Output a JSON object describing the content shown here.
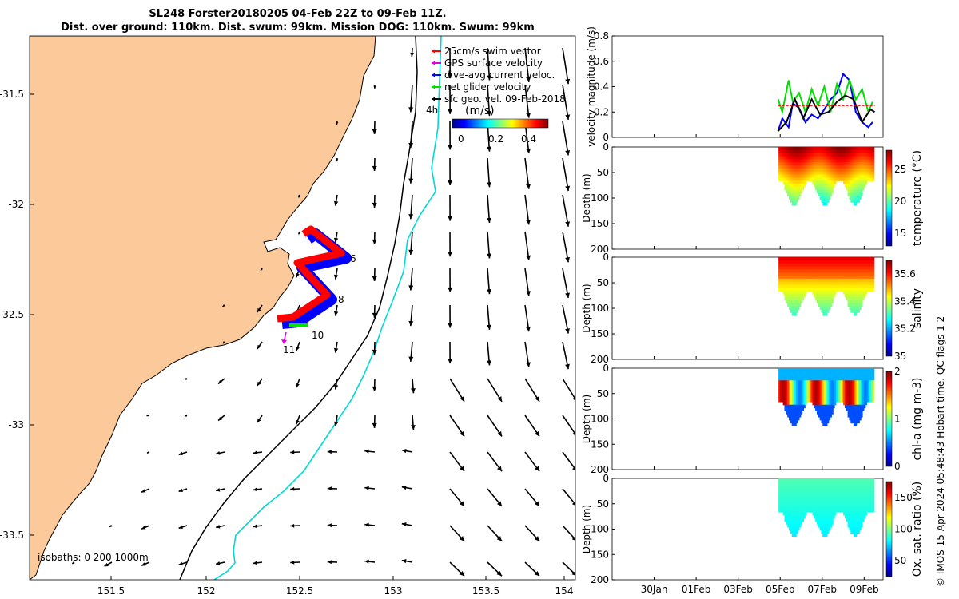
{
  "title_line1": "SL248 Forster20180205 04-Feb 22Z to 09-Feb 11Z.",
  "title_line2": "Dist. over ground: 110km. Dist. swum: 99km. Mission DOG: 110km. Swum: 99km",
  "credit": "© IMOS 15-Apr-2024 05:48:43 Hobart time. QC flags 1  2",
  "colors": {
    "land": "#fcc99b",
    "coast": "#000000",
    "isobath_200": "#000000",
    "isobath_1000": "#00d8d8",
    "swim": "#ff0000",
    "gps": "#e000e0",
    "dive_avg": "#0000ff",
    "net": "#00e000",
    "sfc_geo": "#000000"
  },
  "map": {
    "legend": [
      {
        "label": "25cm/s swim vector",
        "color": "#ff0000"
      },
      {
        "label": "GPS surface velocity",
        "color": "#e000e0"
      },
      {
        "label": "dive-avg current veloc.",
        "color": "#0000ff"
      },
      {
        "label": "net glider velocity",
        "color": "#00e000"
      },
      {
        "label": "sfc geo. vel. 09-Feb-2018",
        "color": "#000000"
      }
    ],
    "colorbar_unit": "(m/s)",
    "colorbar_ticks": [
      "0",
      "0.2",
      "0.4"
    ],
    "time_scale_label": "4h",
    "isobaths_label": "isobaths: 0   200  1000m",
    "lon_ticks": [
      "151.5",
      "152",
      "152.5",
      "153",
      "153.5",
      "154"
    ],
    "lat_ticks": [
      "-31.5",
      "-32",
      "-32.5",
      "-33",
      "-33.5"
    ],
    "track_labels": [
      "6",
      "8",
      "10",
      "11"
    ]
  },
  "chart_data": [
    {
      "type": "line",
      "title": "",
      "ylabel": "velocity magnitude (m/s)",
      "ylim": [
        0,
        0.8
      ],
      "y_ticks": [
        "0",
        "0.2",
        "0.4",
        "0.6",
        "0.8"
      ],
      "x_ticks": [
        "30Jan",
        "01Feb",
        "03Feb",
        "05Feb",
        "07Feb",
        "09Feb"
      ],
      "series": [
        {
          "name": "dive-avg current veloc.",
          "color": "#0000ff",
          "x": [
            4.9,
            5.1,
            5.4,
            5.6,
            5.9,
            6.2,
            6.5,
            6.8,
            7.1,
            7.4,
            7.7,
            8.0,
            8.3,
            8.6,
            8.9,
            9.2,
            9.4
          ],
          "y": [
            0.05,
            0.15,
            0.08,
            0.27,
            0.23,
            0.12,
            0.18,
            0.15,
            0.22,
            0.3,
            0.35,
            0.5,
            0.45,
            0.2,
            0.12,
            0.08,
            0.12
          ]
        },
        {
          "name": "net glider velocity",
          "color": "#00e000",
          "x": [
            4.9,
            5.1,
            5.4,
            5.6,
            5.9,
            6.2,
            6.5,
            6.8,
            7.1,
            7.4,
            7.7,
            8.0,
            8.3,
            8.6,
            8.9,
            9.2,
            9.4
          ],
          "y": [
            0.3,
            0.2,
            0.45,
            0.28,
            0.35,
            0.2,
            0.38,
            0.25,
            0.4,
            0.2,
            0.42,
            0.3,
            0.45,
            0.3,
            0.38,
            0.2,
            0.28
          ]
        },
        {
          "name": "sfc geo. vel.",
          "color": "#000000",
          "x": [
            4.9,
            5.3,
            5.7,
            6.1,
            6.5,
            6.9,
            7.3,
            7.7,
            8.1,
            8.5,
            8.9,
            9.3,
            9.5
          ],
          "y": [
            0.05,
            0.12,
            0.3,
            0.15,
            0.3,
            0.18,
            0.2,
            0.28,
            0.33,
            0.3,
            0.12,
            0.22,
            0.2
          ]
        },
        {
          "name": "swim",
          "color": "#ff0000",
          "x": [
            4.9,
            9.5
          ],
          "y": [
            0.25,
            0.25
          ]
        }
      ]
    },
    {
      "type": "heatmap",
      "variable": "temperature (°C)",
      "ylabel": "Depth (m)",
      "ylim": [
        200,
        0
      ],
      "y_ticks": [
        "0",
        "50",
        "100",
        "150",
        "200"
      ],
      "colorbar_ticks": [
        "15",
        "20",
        "25"
      ],
      "clim": [
        13,
        28
      ],
      "x_ticks": [
        "30Jan",
        "01Feb",
        "03Feb",
        "05Feb",
        "07Feb",
        "09Feb"
      ]
    },
    {
      "type": "heatmap",
      "variable": "salinity",
      "ylabel": "Depth (m)",
      "ylim": [
        200,
        0
      ],
      "y_ticks": [
        "0",
        "50",
        "100",
        "150",
        "200"
      ],
      "colorbar_ticks": [
        "35",
        "35.2",
        "35.4",
        "35.6"
      ],
      "clim": [
        35,
        35.7
      ],
      "x_ticks": [
        "30Jan",
        "01Feb",
        "03Feb",
        "05Feb",
        "07Feb",
        "09Feb"
      ]
    },
    {
      "type": "heatmap",
      "variable": "chl-a (mg m-3)",
      "ylabel": "Depth (m)",
      "ylim": [
        200,
        0
      ],
      "y_ticks": [
        "0",
        "50",
        "100",
        "150",
        "200"
      ],
      "colorbar_ticks": [
        "0",
        "1",
        "2"
      ],
      "clim": [
        0,
        2
      ],
      "x_ticks": [
        "30Jan",
        "01Feb",
        "03Feb",
        "05Feb",
        "07Feb",
        "09Feb"
      ]
    },
    {
      "type": "heatmap",
      "variable": "Ox. sat. ratio (%)",
      "ylabel": "Depth (m)",
      "ylim": [
        200,
        0
      ],
      "y_ticks": [
        "0",
        "50",
        "100",
        "150",
        "200"
      ],
      "colorbar_ticks": [
        "50",
        "100",
        "150"
      ],
      "clim": [
        25,
        175
      ],
      "x_ticks": [
        "30Jan",
        "01Feb",
        "03Feb",
        "05Feb",
        "07Feb",
        "09Feb"
      ]
    }
  ]
}
